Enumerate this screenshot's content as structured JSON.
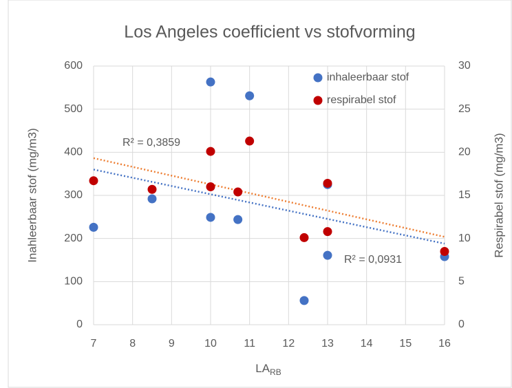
{
  "chart_data": {
    "type": "scatter",
    "title": "Los Angeles coefficient vs stofvorming",
    "x_label": {
      "text": "LA",
      "subscript": "RB"
    },
    "y_label": "Inahleerbaar stof (mg/m3)",
    "y2_label": "Respirabel stof (mg/m3)",
    "xlim": [
      7,
      16
    ],
    "xticks": [
      7,
      8,
      9,
      10,
      11,
      12,
      13,
      14,
      15,
      16
    ],
    "ylim": [
      0,
      600
    ],
    "yticks": [
      0,
      100,
      200,
      300,
      400,
      500,
      600
    ],
    "y2lim": [
      0,
      30
    ],
    "y2ticks": [
      0,
      5,
      10,
      15,
      20,
      25,
      30
    ],
    "grid": true,
    "legend": "top-right",
    "series": [
      {
        "name": "inhaleerbaar stof",
        "color": "#4472c4",
        "trendline_color": "#4472c4",
        "x": [
          7,
          8.5,
          10,
          10,
          10.7,
          11,
          12.4,
          13,
          13,
          16
        ],
        "values": [
          226,
          292,
          563,
          249,
          244,
          531,
          56,
          325,
          161,
          158
        ],
        "r2_label": "R² = 0,0931"
      },
      {
        "name": "respirabel stof",
        "color": "#c00000",
        "trendline_color": "#ed7d31",
        "axis": "y2",
        "x": [
          7,
          8.5,
          10,
          10,
          10.7,
          11,
          12.4,
          13,
          13,
          16
        ],
        "values": [
          16.7,
          15.7,
          20.1,
          16.0,
          15.4,
          21.3,
          10.1,
          16.4,
          10.8,
          8.5
        ],
        "r2_label": "R² = 0,3859"
      }
    ]
  }
}
